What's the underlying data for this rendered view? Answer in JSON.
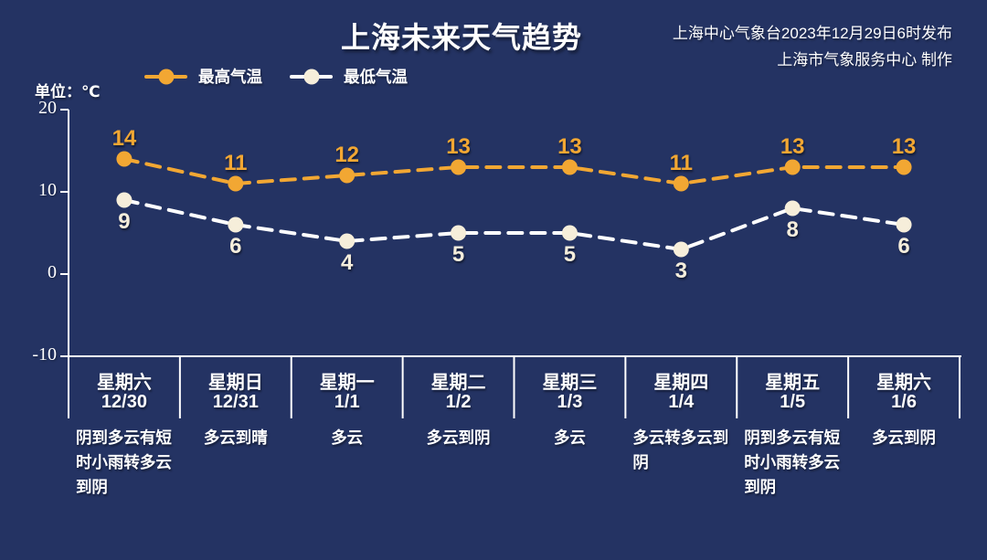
{
  "header": {
    "title": "上海未来天气趋势",
    "publisher_line1": "上海中心气象台2023年12月29日6时发布",
    "publisher_line2": "上海市气象服务中心 制作"
  },
  "unit_label": "单位：℃",
  "colors": {
    "background": "#243363",
    "axis": "#FFFFFF",
    "high": "#F2A733",
    "low_line": "#FFFFFF",
    "low_marker": "#F6EEDA",
    "text": "#FFFFFF"
  },
  "legend": [
    {
      "label": "最高气温",
      "line_color": "#F2A733",
      "dot_color": "#F2A733"
    },
    {
      "label": "最低气温",
      "line_color": "#FFFFFF",
      "dot_color": "#F6EEDA"
    }
  ],
  "chart_data": {
    "type": "line",
    "title": "上海未来天气趋势",
    "ylabel": "单位：℃",
    "yticks": [
      20,
      10,
      0,
      -10
    ],
    "ylim": [
      -10,
      20
    ],
    "grid": false,
    "line_style": "dashed",
    "legend_position": "top-left",
    "categories": [
      {
        "day": "星期六",
        "date": "12/30",
        "weather": "阴到多云有短时小雨转多云到阴"
      },
      {
        "day": "星期日",
        "date": "12/31",
        "weather": "多云到晴"
      },
      {
        "day": "星期一",
        "date": "1/1",
        "weather": "多云"
      },
      {
        "day": "星期二",
        "date": "1/2",
        "weather": "多云到阴"
      },
      {
        "day": "星期三",
        "date": "1/3",
        "weather": "多云"
      },
      {
        "day": "星期四",
        "date": "1/4",
        "weather": "多云转多云到阴"
      },
      {
        "day": "星期五",
        "date": "1/5",
        "weather": "阴到多云有短时小雨转多云到阴"
      },
      {
        "day": "星期六",
        "date": "1/6",
        "weather": "多云到阴"
      }
    ],
    "series": [
      {
        "name": "最高气温",
        "color": "#F2A733",
        "marker_color": "#F2A733",
        "label_color": "#F2A733",
        "values": [
          14,
          11,
          12,
          13,
          13,
          11,
          13,
          13
        ]
      },
      {
        "name": "最低气温",
        "color": "#FFFFFF",
        "marker_color": "#F6EEDA",
        "label_color": "#F5EEDC",
        "values": [
          9,
          6,
          4,
          5,
          5,
          3,
          8,
          6
        ]
      }
    ]
  }
}
